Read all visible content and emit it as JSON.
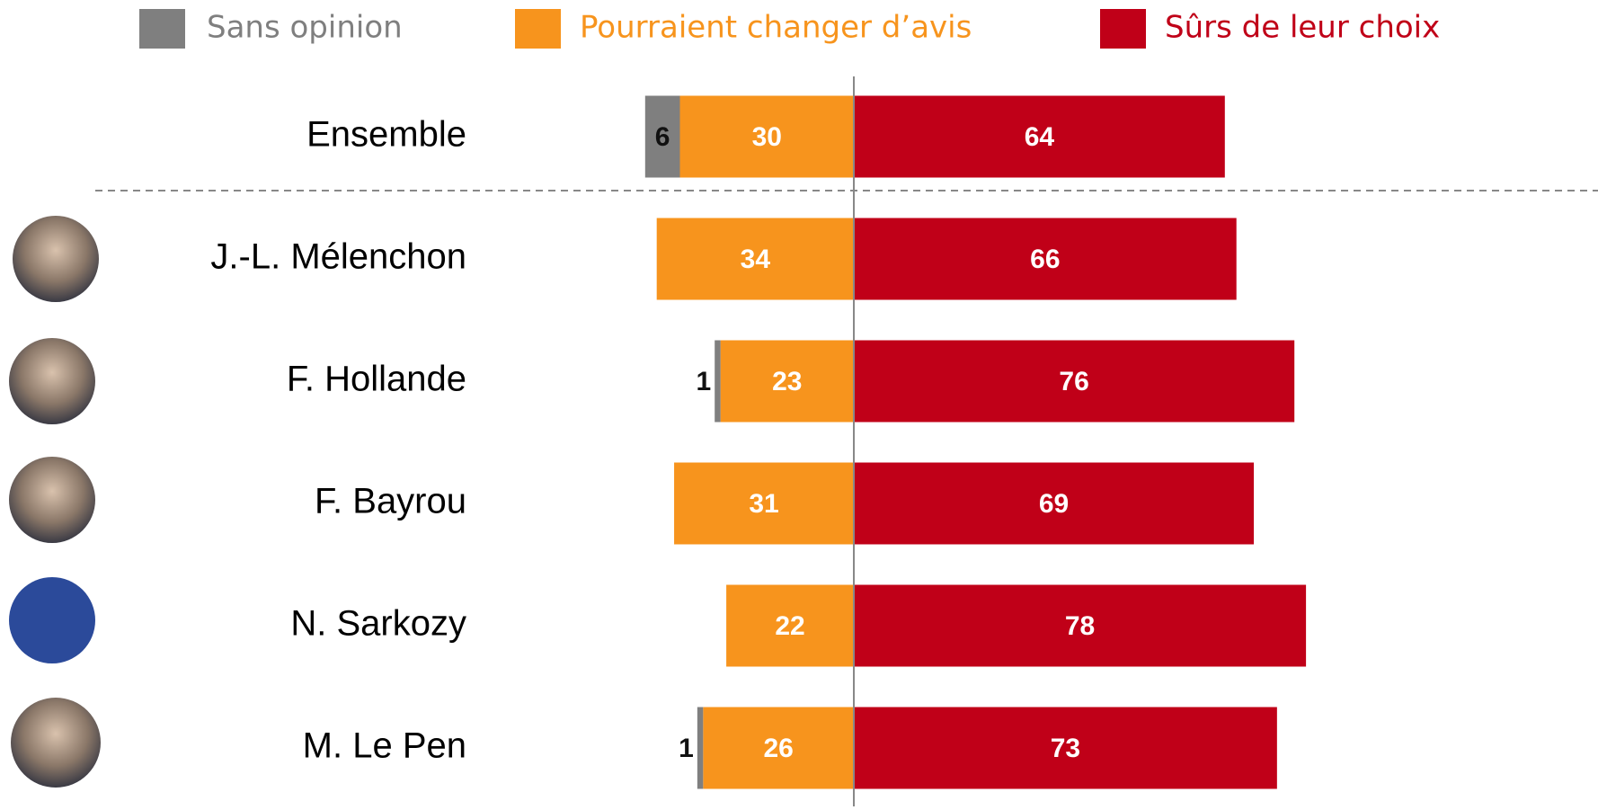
{
  "chart_data": {
    "type": "bar",
    "orientation": "diverging-horizontal",
    "categories": [
      "Ensemble",
      "J.-L. Mélenchon",
      "F. Hollande",
      "F. Bayrou",
      "N. Sarkozy",
      "M. Le Pen"
    ],
    "series": [
      {
        "name": "Sans opinion",
        "color": "#7f7f7f",
        "side": "left",
        "values": [
          6,
          null,
          1,
          null,
          null,
          1
        ]
      },
      {
        "name": "Pourraient changer d’avis",
        "color": "#f7941d",
        "side": "left",
        "values": [
          30,
          34,
          23,
          31,
          22,
          26
        ]
      },
      {
        "name": "Sûrs de leur choix",
        "color": "#c00018",
        "side": "right",
        "values": [
          64,
          66,
          76,
          69,
          78,
          73
        ]
      }
    ]
  }
}
